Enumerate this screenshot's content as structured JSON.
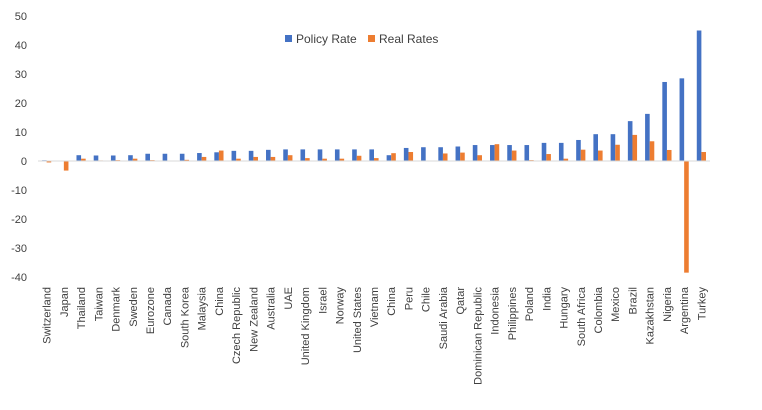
{
  "chart_data": {
    "type": "bar",
    "categories": [
      "Switzerland",
      "Japan",
      "Thailand",
      "Taiwan",
      "Denmark",
      "Sweden",
      "Eurozone",
      "Canada",
      "South Korea",
      "Malaysia",
      "China",
      "Czech Republic",
      "New Zealand",
      "Australia",
      "UAE",
      "United Kingdom",
      "Israel",
      "Norway",
      "United States",
      "Vietnam",
      "China",
      "Peru",
      "Chile",
      "Saudi Arabia",
      "Qatar",
      "Dominican Republic",
      "Indonesia",
      "Philippines",
      "Poland",
      "India",
      "Hungary",
      "South Africa",
      "Colombia",
      "Mexico",
      "Brazil",
      "Kazakhstan",
      "Nigeria",
      "Argentina",
      "Turkey"
    ],
    "series": [
      {
        "name": "Policy Rate",
        "color": "#4472C4",
        "values": [
          0.25,
          0.1,
          2.0,
          1.9,
          1.9,
          2.0,
          2.5,
          2.5,
          2.5,
          2.75,
          3.0,
          3.5,
          3.5,
          3.85,
          4.0,
          4.0,
          4.0,
          4.0,
          4.0,
          4.0,
          2.0,
          4.5,
          4.75,
          4.75,
          5.0,
          5.5,
          5.5,
          5.5,
          5.5,
          6.25,
          6.25,
          7.25,
          9.25,
          9.25,
          13.75,
          16.25,
          27.25,
          28.5,
          45.0
        ]
      },
      {
        "name": "Real Rates",
        "color": "#ED7D31",
        "values": [
          -0.5,
          -3.3,
          0.8,
          0.2,
          0.3,
          0.8,
          0.3,
          0.1,
          0.4,
          1.4,
          3.6,
          0.8,
          1.4,
          1.4,
          2.0,
          1.0,
          0.8,
          0.8,
          1.8,
          1.0,
          2.7,
          3.1,
          0.1,
          2.6,
          2.9,
          2.0,
          5.8,
          3.6,
          0.3,
          2.4,
          0.8,
          3.9,
          3.6,
          5.6,
          9.0,
          6.8,
          3.8,
          -38.5,
          3.1
        ]
      }
    ],
    "ylim": [
      -40,
      50
    ],
    "yticks": [
      -40,
      -30,
      -20,
      -10,
      0,
      10,
      20,
      30,
      40,
      50
    ],
    "legend_position": "top-center",
    "grid": false,
    "title": "",
    "xlabel": "",
    "ylabel": ""
  }
}
